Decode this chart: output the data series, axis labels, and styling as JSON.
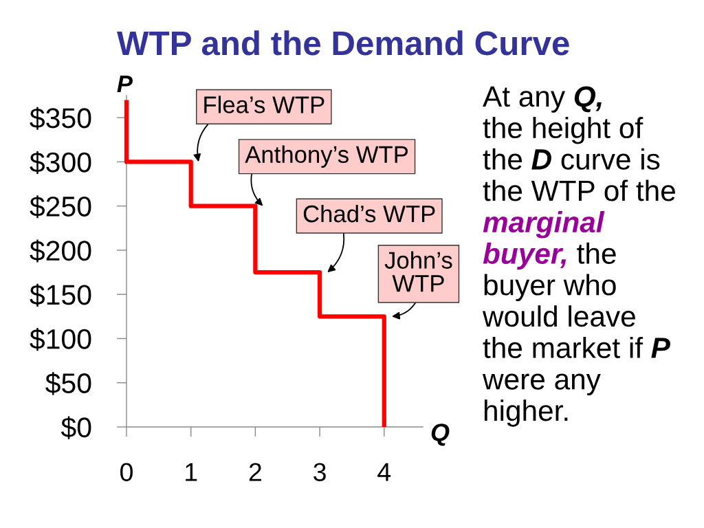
{
  "chart_data": {
    "type": "line",
    "title": "WTP and the Demand Curve",
    "xlabel": "Q",
    "ylabel": "P",
    "x": [
      0,
      0,
      1,
      1,
      2,
      2,
      3,
      3,
      4,
      4
    ],
    "values": [
      370,
      300,
      300,
      250,
      250,
      175,
      175,
      125,
      125,
      0
    ],
    "color": "#ff0000",
    "xlim": [
      0,
      4.6
    ],
    "xticks": [
      0,
      1,
      2,
      3,
      4
    ],
    "ylim": [
      0,
      375
    ],
    "yticks": [
      {
        "value": 0,
        "label": "$0"
      },
      {
        "value": 50,
        "label": "$50"
      },
      {
        "value": 100,
        "label": "$100"
      },
      {
        "value": 150,
        "label": "$150"
      },
      {
        "value": 200,
        "label": "$200"
      },
      {
        "value": 250,
        "label": "$250"
      },
      {
        "value": 300,
        "label": "$300"
      },
      {
        "value": 350,
        "label": "$350"
      }
    ],
    "annotations": [
      {
        "text": "Flea’s WTP",
        "x": 1,
        "y": 300
      },
      {
        "text": "Anthony’s WTP",
        "x": 2,
        "y": 250
      },
      {
        "text": "Chad’s WTP",
        "x": 3,
        "y": 175
      },
      {
        "text": "John’s\nWTP",
        "x": 4,
        "y": 125
      },
      "At any Q,\nthe height of\nthe D curve is\nthe WTP of the\nmarginal\nbuyer, the\nbuyer who\nwould leave\nthe market if P\nwere any\nhigher."
    ]
  }
}
